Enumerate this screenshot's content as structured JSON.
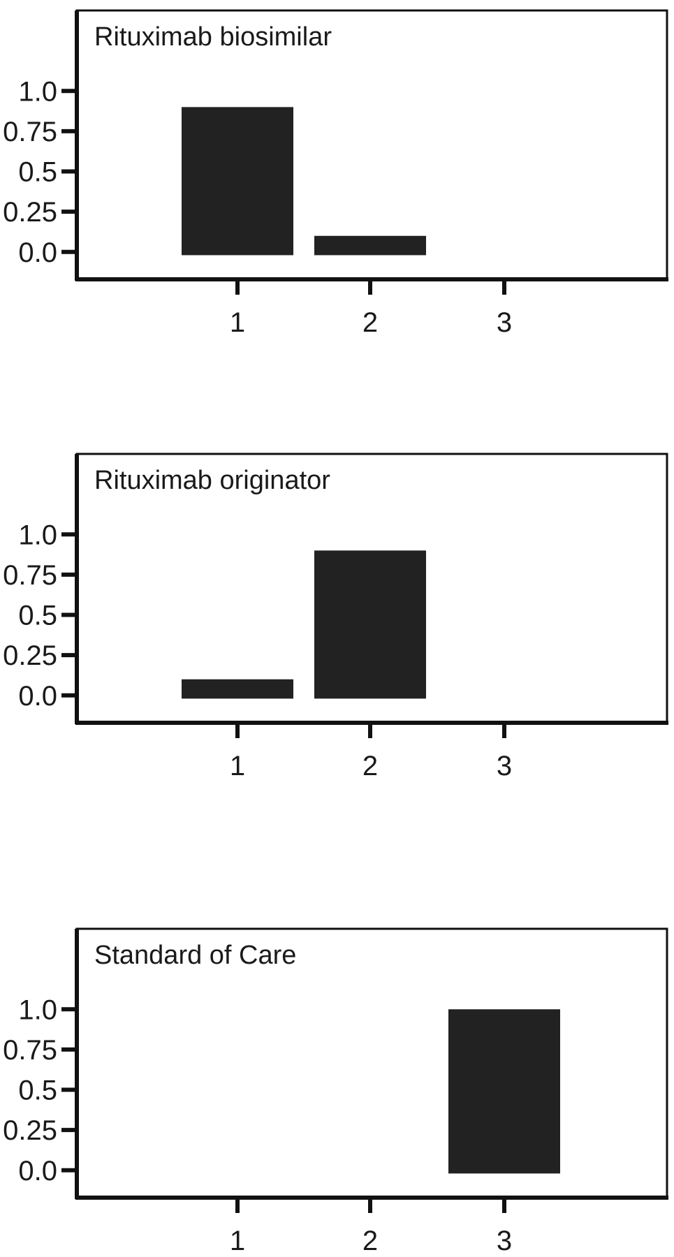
{
  "chart_data": [
    {
      "type": "bar",
      "title": "Rituximab biosimilar",
      "categories": [
        "1",
        "2",
        "3"
      ],
      "values": [
        0.9,
        0.1,
        0.0
      ],
      "yticks": [
        "1.0",
        "0.75",
        "0.5",
        "0.25",
        "0.0"
      ],
      "ytick_values": [
        1.0,
        0.75,
        0.5,
        0.25,
        0.0
      ],
      "ylim": [
        -0.17,
        1.5
      ],
      "xlabel": "",
      "ylabel": "",
      "grid": false,
      "bar_color": "#222222"
    },
    {
      "type": "bar",
      "title": "Rituximab originator",
      "categories": [
        "1",
        "2",
        "3"
      ],
      "values": [
        0.1,
        0.9,
        0.0
      ],
      "yticks": [
        "1.0",
        "0.75",
        "0.5",
        "0.25",
        "0.0"
      ],
      "ytick_values": [
        1.0,
        0.75,
        0.5,
        0.25,
        0.0
      ],
      "ylim": [
        -0.17,
        1.5
      ],
      "xlabel": "",
      "ylabel": "",
      "grid": false,
      "bar_color": "#222222"
    },
    {
      "type": "bar",
      "title": "Standard of Care",
      "categories": [
        "1",
        "2",
        "3"
      ],
      "values": [
        0.0,
        0.0,
        1.0
      ],
      "yticks": [
        "1.0",
        "0.75",
        "0.5",
        "0.25",
        "0.0"
      ],
      "ytick_values": [
        1.0,
        0.75,
        0.5,
        0.25,
        0.0
      ],
      "ylim": [
        -0.17,
        1.5
      ],
      "xlabel": "",
      "ylabel": "",
      "grid": false,
      "bar_color": "#222222"
    }
  ]
}
